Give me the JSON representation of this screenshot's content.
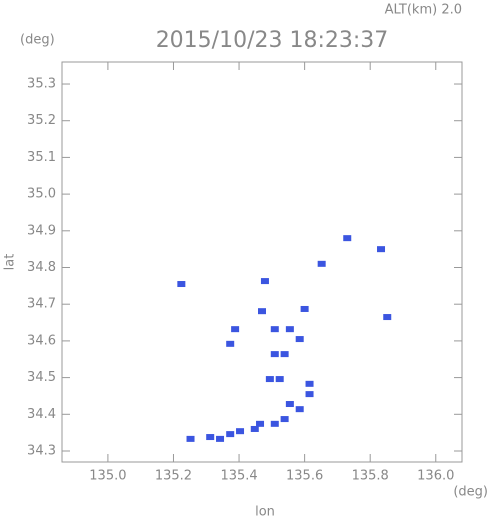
{
  "chart_data": {
    "type": "scatter",
    "title": "2015/10/23 18:23:37",
    "subtitle": "ALT(km)  2.0",
    "y_unit": "(deg)",
    "x_unit": "(deg)",
    "ylabel": "lat",
    "xlabel": "lon",
    "color": "#3b55e0",
    "xlim": [
      134.86,
      136.08
    ],
    "ylim": [
      34.27,
      35.36
    ],
    "xticks": [
      {
        "value": 135.0,
        "label": "135.0"
      },
      135.2,
      135.4,
      135.6,
      135.8,
      {
        "value": 136.0,
        "label": "136.0"
      }
    ],
    "yticks": [
      34.3,
      34.4,
      34.5,
      34.6,
      34.7,
      34.8,
      34.9,
      {
        "value": 35.0,
        "label": "35.0"
      },
      35.1,
      35.2,
      35.3
    ],
    "x": [
      135.73,
      135.833,
      135.224,
      135.479,
      135.652,
      135.852,
      135.47,
      135.509,
      135.555,
      135.6,
      135.585,
      135.509,
      135.539,
      135.524,
      135.494,
      135.615,
      135.615,
      135.539,
      135.585,
      135.509,
      135.448,
      135.403,
      135.373,
      135.312,
      135.252,
      135.342,
      135.464,
      135.388,
      135.373,
      135.555
    ],
    "values": [
      34.88,
      34.85,
      34.755,
      34.763,
      34.81,
      34.665,
      34.681,
      34.632,
      34.632,
      34.687,
      34.605,
      34.564,
      34.564,
      34.496,
      34.496,
      34.483,
      34.455,
      34.387,
      34.414,
      34.374,
      34.36,
      34.354,
      34.346,
      34.338,
      34.333,
      34.333,
      34.374,
      34.632,
      34.592,
      34.428
    ]
  }
}
